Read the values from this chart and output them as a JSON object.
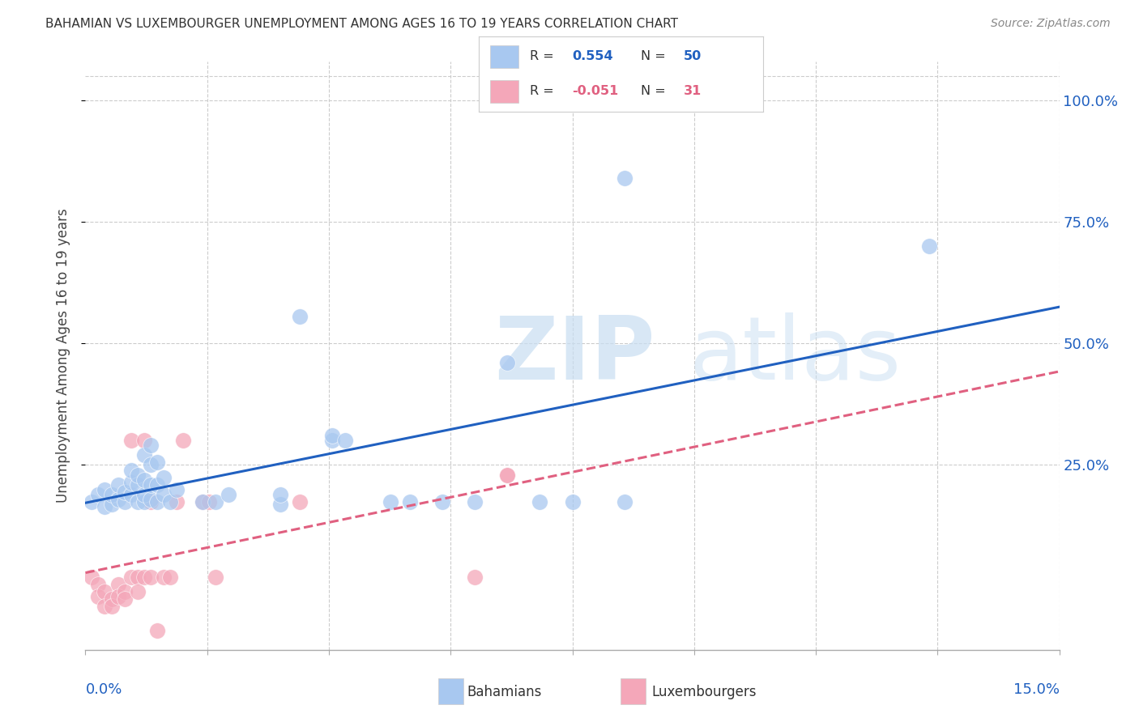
{
  "title": "BAHAMIAN VS LUXEMBOURGER UNEMPLOYMENT AMONG AGES 16 TO 19 YEARS CORRELATION CHART",
  "source": "Source: ZipAtlas.com",
  "ylabel": "Unemployment Among Ages 16 to 19 years",
  "ytick_labels": [
    "25.0%",
    "50.0%",
    "75.0%",
    "100.0%"
  ],
  "ytick_positions": [
    0.25,
    0.5,
    0.75,
    1.0
  ],
  "xmin": 0.0,
  "xmax": 0.15,
  "ymin": -0.13,
  "ymax": 1.08,
  "color_blue": "#A8C8F0",
  "color_pink": "#F4A7B9",
  "color_line_blue": "#2060C0",
  "color_line_pink": "#E06080",
  "background": "#FFFFFF",
  "grid_color": "#CCCCCC",
  "blue_scatter": [
    [
      0.001,
      0.175
    ],
    [
      0.002,
      0.19
    ],
    [
      0.003,
      0.2
    ],
    [
      0.003,
      0.165
    ],
    [
      0.004,
      0.17
    ],
    [
      0.004,
      0.19
    ],
    [
      0.005,
      0.18
    ],
    [
      0.005,
      0.21
    ],
    [
      0.006,
      0.175
    ],
    [
      0.006,
      0.195
    ],
    [
      0.007,
      0.19
    ],
    [
      0.007,
      0.215
    ],
    [
      0.007,
      0.24
    ],
    [
      0.008,
      0.175
    ],
    [
      0.008,
      0.21
    ],
    [
      0.008,
      0.23
    ],
    [
      0.009,
      0.175
    ],
    [
      0.009,
      0.19
    ],
    [
      0.009,
      0.22
    ],
    [
      0.009,
      0.27
    ],
    [
      0.01,
      0.18
    ],
    [
      0.01,
      0.21
    ],
    [
      0.01,
      0.25
    ],
    [
      0.01,
      0.29
    ],
    [
      0.011,
      0.175
    ],
    [
      0.011,
      0.21
    ],
    [
      0.011,
      0.255
    ],
    [
      0.012,
      0.19
    ],
    [
      0.012,
      0.225
    ],
    [
      0.013,
      0.175
    ],
    [
      0.014,
      0.2
    ],
    [
      0.018,
      0.175
    ],
    [
      0.02,
      0.175
    ],
    [
      0.022,
      0.19
    ],
    [
      0.03,
      0.17
    ],
    [
      0.03,
      0.19
    ],
    [
      0.033,
      0.555
    ],
    [
      0.038,
      0.3
    ],
    [
      0.038,
      0.31
    ],
    [
      0.04,
      0.3
    ],
    [
      0.047,
      0.175
    ],
    [
      0.05,
      0.175
    ],
    [
      0.055,
      0.175
    ],
    [
      0.06,
      0.175
    ],
    [
      0.065,
      0.46
    ],
    [
      0.07,
      0.175
    ],
    [
      0.075,
      0.175
    ],
    [
      0.083,
      0.84
    ],
    [
      0.083,
      0.175
    ],
    [
      0.13,
      0.7
    ]
  ],
  "pink_scatter": [
    [
      0.001,
      0.02
    ],
    [
      0.002,
      0.005
    ],
    [
      0.002,
      -0.02
    ],
    [
      0.003,
      -0.01
    ],
    [
      0.003,
      -0.04
    ],
    [
      0.004,
      -0.025
    ],
    [
      0.004,
      -0.04
    ],
    [
      0.005,
      0.005
    ],
    [
      0.005,
      -0.02
    ],
    [
      0.006,
      -0.01
    ],
    [
      0.006,
      -0.025
    ],
    [
      0.007,
      0.02
    ],
    [
      0.007,
      0.3
    ],
    [
      0.008,
      0.02
    ],
    [
      0.008,
      -0.01
    ],
    [
      0.009,
      0.02
    ],
    [
      0.009,
      0.3
    ],
    [
      0.01,
      0.02
    ],
    [
      0.01,
      0.175
    ],
    [
      0.011,
      -0.09
    ],
    [
      0.012,
      0.02
    ],
    [
      0.013,
      0.02
    ],
    [
      0.014,
      0.175
    ],
    [
      0.015,
      0.3
    ],
    [
      0.018,
      0.175
    ],
    [
      0.019,
      0.175
    ],
    [
      0.02,
      0.02
    ],
    [
      0.033,
      0.175
    ],
    [
      0.06,
      0.02
    ],
    [
      0.065,
      0.23
    ],
    [
      0.065,
      0.23
    ]
  ]
}
